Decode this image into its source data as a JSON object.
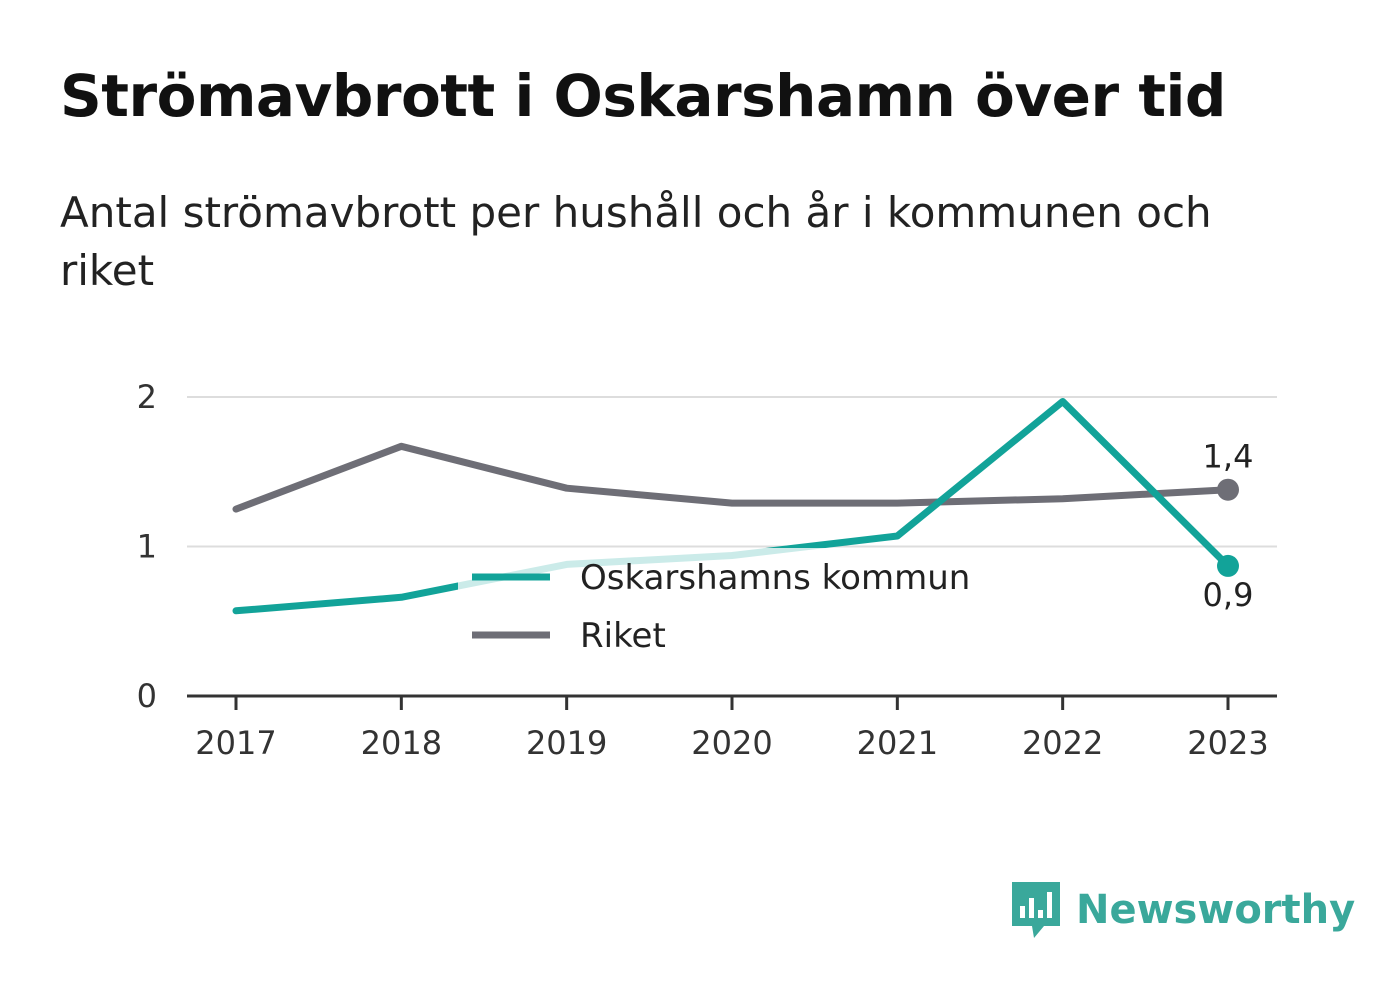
{
  "title": "Strömavbrott i Oskarshamn över tid",
  "subtitle": "Antal strömavbrott per hushåll och år i kommunen och riket",
  "brand": {
    "name": "Newsworthy",
    "icon": "newsworthy-logo-icon",
    "color": "#3aa89b"
  },
  "chart_data": {
    "type": "line",
    "x": [
      "2017",
      "2018",
      "2019",
      "2020",
      "2021",
      "2022",
      "2023"
    ],
    "ylim": [
      0,
      2
    ],
    "yticks": [
      "0",
      "1",
      "2"
    ],
    "grid": true,
    "legend_position": "center",
    "series": [
      {
        "name": "Oskarshamns kommun",
        "color": "#12a399",
        "values": [
          0.57,
          0.66,
          0.88,
          0.94,
          1.07,
          1.97,
          0.87
        ],
        "end_label": "0,9"
      },
      {
        "name": "Riket",
        "color": "#6e6e76",
        "values": [
          1.25,
          1.67,
          1.39,
          1.29,
          1.29,
          1.32,
          1.38
        ],
        "end_label": "1,4"
      }
    ]
  }
}
